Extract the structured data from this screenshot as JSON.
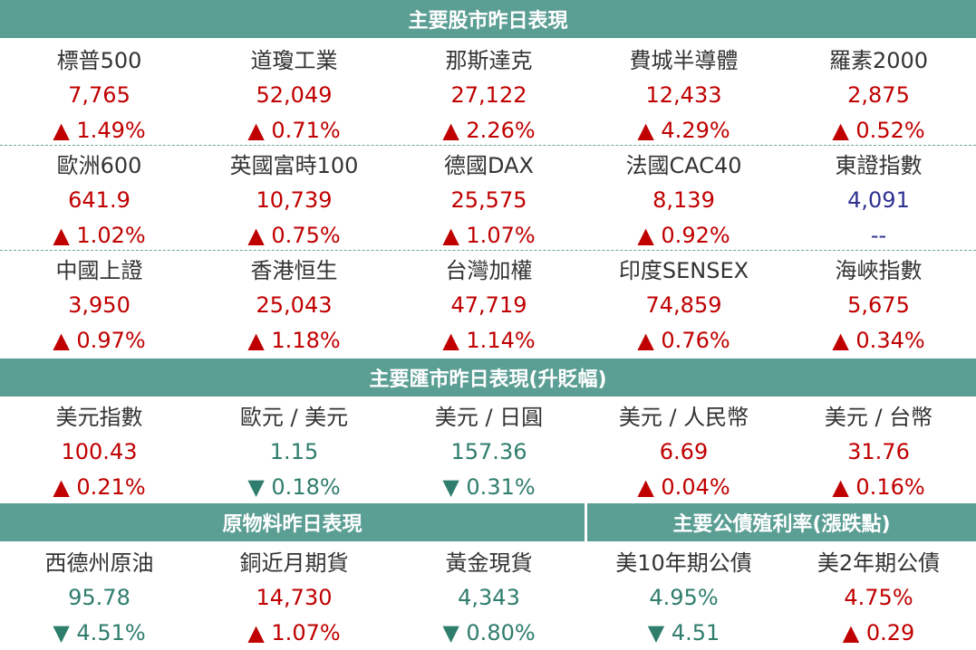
{
  "sections": [
    {
      "title": "主要股市昨日表現",
      "rows": [
        [
          {
            "name": "標普500",
            "value": "7,765",
            "change": "▲ 1.49%",
            "color": "#c00000"
          },
          {
            "name": "道瓊工業",
            "value": "52,049",
            "change": "▲ 0.71%",
            "color": "#c00000"
          },
          {
            "name": "那斯達克",
            "value": "27,122",
            "change": "▲ 2.26%",
            "color": "#c00000"
          },
          {
            "name": "費城半導體",
            "value": "12,433",
            "change": "▲ 4.29%",
            "color": "#c00000"
          },
          {
            "name": "羅素2000",
            "value": "2,875",
            "change": "▲ 0.52%",
            "color": "#c00000"
          }
        ],
        [
          {
            "name": "歐洲600",
            "value": "641.9",
            "change": "▲ 1.02%",
            "color": "#c00000"
          },
          {
            "name": "英國富時100",
            "value": "10,739",
            "change": "▲ 0.75%",
            "color": "#c00000"
          },
          {
            "name": "德國DAX",
            "value": "25,575",
            "change": "▲ 1.07%",
            "color": "#c00000"
          },
          {
            "name": "法國CAC40",
            "value": "8,139",
            "change": "▲ 0.92%",
            "color": "#c00000"
          },
          {
            "name": "東證指數",
            "value": "4,091",
            "change": "--",
            "color": "#2e3192"
          }
        ],
        [
          {
            "name": "中國上證",
            "value": "3,950",
            "change": "▲ 0.97%",
            "color": "#c00000"
          },
          {
            "name": "香港恒生",
            "value": "25,043",
            "change": "▲ 1.18%",
            "color": "#c00000"
          },
          {
            "name": "台灣加權",
            "value": "47,719",
            "change": "▲ 1.14%",
            "color": "#c00000"
          },
          {
            "name": "印度SENSEX",
            "value": "74,859",
            "change": "▲ 0.76%",
            "color": "#c00000"
          },
          {
            "name": "海峽指數",
            "value": "5,675",
            "change": "▲ 0.34%",
            "color": "#c00000"
          }
        ]
      ]
    },
    {
      "title": "主要匯市昨日表現(升貶幅)",
      "rows": [
        [
          {
            "name": "美元指數",
            "value": "100.43",
            "change": "▲ 0.21%",
            "color": "#c00000"
          },
          {
            "name": "歐元 / 美元",
            "value": "1.15",
            "change": "▼ 0.18%",
            "color": "#2f7d6d"
          },
          {
            "name": "美元 / 日圓",
            "value": "157.36",
            "change": "▼ 0.31%",
            "color": "#2f7d6d"
          },
          {
            "name": "美元 / 人民幣",
            "value": "6.69",
            "change": "▲ 0.04%",
            "color": "#c00000"
          },
          {
            "name": "美元 / 台幣",
            "value": "31.76",
            "change": "▲ 0.16%",
            "color": "#c00000"
          }
        ]
      ]
    }
  ],
  "commodities": {
    "title": "原物料昨日表現",
    "items": [
      {
        "name": "西德州原油",
        "value": "95.78",
        "change": "▼ 4.51%",
        "color": "#2f7d6d"
      },
      {
        "name": "銅近月期貨",
        "value": "14,730",
        "change": "▲ 1.07%",
        "color": "#c00000"
      },
      {
        "name": "黃金現貨",
        "value": "4,343",
        "change": "▼ 0.80%",
        "color": "#2f7d6d"
      }
    ]
  },
  "bonds": {
    "title": "主要公債殖利率(漲跌點)",
    "items": [
      {
        "name": "美10年期公債",
        "value": "4.95%",
        "change": "▼ 4.51",
        "color": "#2f7d6d"
      },
      {
        "name": "美2年期公債",
        "value": "4.75%",
        "change": "▲ 0.29",
        "color": "#c00000"
      }
    ]
  }
}
